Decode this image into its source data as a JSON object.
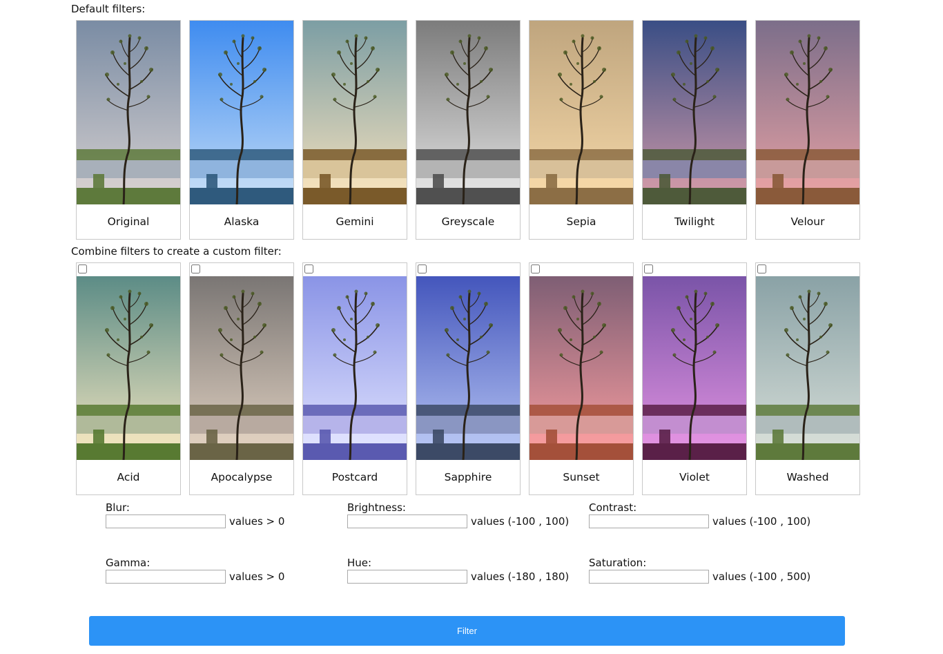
{
  "default_section": {
    "title": "Default filters:",
    "filters": [
      {
        "label": "Original",
        "sky_top": "#7a8ca4",
        "sky_bottom": "#d7d1d0",
        "ground": "#5e7a3c",
        "water": "#a8b0ba",
        "tint": ""
      },
      {
        "label": "Alaska",
        "sky_top": "#3f8cf0",
        "sky_bottom": "#c3dcf6",
        "ground": "#2f5a7d",
        "water": "#8fb4de",
        "tint": ""
      },
      {
        "label": "Gemini",
        "sky_top": "#7c9ea4",
        "sky_bottom": "#f7e2bd",
        "ground": "#7a5a2a",
        "water": "#d9c49a",
        "tint": ""
      },
      {
        "label": "Greyscale",
        "sky_top": "#7c7c7c",
        "sky_bottom": "#e4e4e4",
        "ground": "#505050",
        "water": "#b4b4b4",
        "tint": ""
      },
      {
        "label": "Sepia",
        "sky_top": "#bfa57e",
        "sky_bottom": "#f6d9a9",
        "ground": "#8c6e45",
        "water": "#d8c099",
        "tint": ""
      },
      {
        "label": "Twilight",
        "sky_top": "#3a4e85",
        "sky_bottom": "#d19aa8",
        "ground": "#4e5a3a",
        "water": "#8a86a8",
        "tint": ""
      },
      {
        "label": "Velour",
        "sky_top": "#7c6e8a",
        "sky_bottom": "#e8a2a4",
        "ground": "#8a5a3a",
        "water": "#c89a9a",
        "tint": ""
      }
    ]
  },
  "custom_section": {
    "title": "Combine filters to create a custom filter:",
    "filters": [
      {
        "label": "Acid",
        "sky_top": "#5c8c86",
        "sky_bottom": "#f3e6c0",
        "ground": "#587a32",
        "water": "#b0ba9a",
        "checked": false
      },
      {
        "label": "Apocalypse",
        "sky_top": "#7a7674",
        "sky_bottom": "#e2d2c2",
        "ground": "#6a6446",
        "water": "#b8aaa0",
        "checked": false
      },
      {
        "label": "Postcard",
        "sky_top": "#8a94e6",
        "sky_bottom": "#e2e4ff",
        "ground": "#5a5ab0",
        "water": "#b6b4ea",
        "checked": false
      },
      {
        "label": "Sapphire",
        "sky_top": "#4456bc",
        "sky_bottom": "#b8c6f4",
        "ground": "#3c4a66",
        "water": "#8a96c2",
        "checked": false
      },
      {
        "label": "Sunset",
        "sky_top": "#7e5e74",
        "sky_bottom": "#fa9ea0",
        "ground": "#a4503a",
        "water": "#d89a98",
        "checked": false
      },
      {
        "label": "Violet",
        "sky_top": "#7a54a8",
        "sky_bottom": "#e494e2",
        "ground": "#5a2048",
        "water": "#c38ed0",
        "checked": false
      },
      {
        "label": "Washed",
        "sky_top": "#8aa2a6",
        "sky_bottom": "#d8dfd9",
        "ground": "#5e7a3c",
        "water": "#b0bcbc",
        "checked": false
      }
    ]
  },
  "adjustments": [
    {
      "label": "Blur:",
      "value": "",
      "placeholder": "",
      "hint": "values > 0"
    },
    {
      "label": "Brightness:",
      "value": "",
      "placeholder": "",
      "hint": "values (-100 , 100)"
    },
    {
      "label": "Contrast:",
      "value": "",
      "placeholder": "",
      "hint": "values (-100 , 100)"
    },
    {
      "label": "Gamma:",
      "value": "",
      "placeholder": "",
      "hint": "values > 0"
    },
    {
      "label": "Hue:",
      "value": "",
      "placeholder": "",
      "hint": "values (-180 , 180)"
    },
    {
      "label": "Saturation:",
      "value": "",
      "placeholder": "",
      "hint": "values (-100 , 500)"
    }
  ],
  "filter_button": {
    "label": "Filter",
    "color": "#2c93f6"
  }
}
